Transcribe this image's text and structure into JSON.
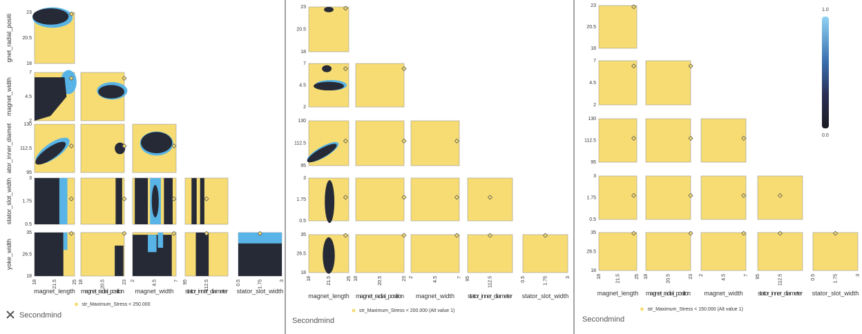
{
  "panels": [
    {
      "row_labels": [
        "gnet_radial_positi",
        "magnet_width",
        "ator_inner_diamet",
        "stator_slot_width",
        "yoke_width"
      ],
      "yticks": [
        [
          "23",
          "20.5",
          "18"
        ],
        [
          "7",
          "4.5",
          "2"
        ],
        [
          "130",
          "112.5",
          "95"
        ],
        [
          "3",
          "1.75",
          "0.5"
        ],
        [
          "35",
          "26.5",
          "18"
        ]
      ],
      "xticks": [
        [
          "18",
          "21.5",
          "25"
        ],
        [
          "18",
          "20.5",
          "23"
        ],
        [
          "2",
          "4.5",
          "7"
        ],
        [
          "95",
          "112.5"
        ],
        [
          "0.5",
          "1.75",
          "3"
        ]
      ],
      "col_labels": [
        "magnet_length",
        "magnet_radial_position",
        "magnet_width",
        "stator_inner_diameter",
        "stator_slot_width"
      ],
      "legend": "str_Maximum_Stress < 250.000",
      "brand": "Secondmind"
    },
    {
      "yticks": [
        [
          "23",
          "20.5",
          "18"
        ],
        [
          "7",
          "4.5",
          "2"
        ],
        [
          "130",
          "112.5",
          "95"
        ],
        [
          "3",
          "1.75",
          "0.5"
        ],
        [
          "35",
          "26.5",
          "18"
        ]
      ],
      "xticks": [
        [
          "18",
          "21.5",
          "25"
        ],
        [
          "18",
          "20.5",
          "23"
        ],
        [
          "2",
          "4.5",
          "7"
        ],
        [
          "95",
          "112.5"
        ],
        [
          "0.5",
          "1.75",
          "3"
        ]
      ],
      "col_labels": [
        "magnet_length",
        "magnet_radial_position",
        "magnet_width",
        "stator_inner_diameter",
        "stator_slot_width"
      ],
      "legend": "str_Maximum_Stress < 200.000 (Alt value 1)",
      "brand": "Secondmind"
    },
    {
      "yticks": [
        [
          "23",
          "20.5",
          "18"
        ],
        [
          "7",
          "4.5",
          "2"
        ],
        [
          "130",
          "112.5",
          "95"
        ],
        [
          "3",
          "1.75",
          "0.5"
        ],
        [
          "35",
          "26.5",
          "18"
        ]
      ],
      "xticks": [
        [
          "18",
          "21.5",
          "25"
        ],
        [
          "18",
          "20.5",
          "23"
        ],
        [
          "2",
          "4.5",
          "7"
        ],
        [
          "95",
          "112.5"
        ],
        [
          "0.5",
          "1.75",
          "3"
        ]
      ],
      "col_labels": [
        "magnet_length",
        "magnet_radial_position",
        "magnet_width",
        "stator_inner_diameter",
        "stator_slot_width"
      ],
      "legend": "str_Maximum_Stress < 150.000 (Alt value 1)",
      "brand": "Secondmind",
      "colorbar": {
        "max_label": "1.0",
        "min_label": "0.0"
      }
    }
  ]
}
